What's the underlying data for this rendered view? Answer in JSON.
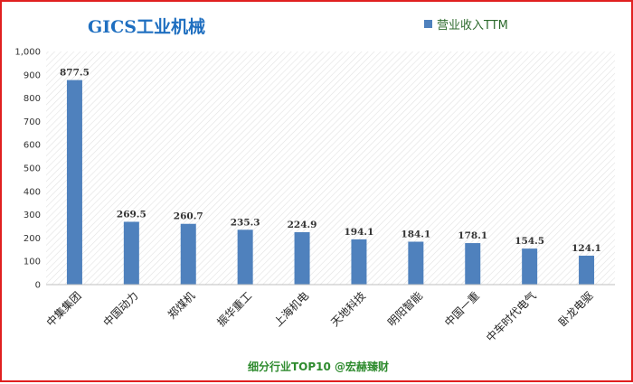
{
  "chart_data": {
    "type": "bar",
    "title": "GICS工业机械",
    "legend": {
      "label": "营业收入TTM",
      "position": "top-right"
    },
    "categories": [
      "中集集团",
      "中国动力",
      "郑煤机",
      "振华重工",
      "上海机电",
      "天地科技",
      "明阳智能",
      "中国一重",
      "中车时代电气",
      "卧龙电驱"
    ],
    "values": [
      877.5,
      269.5,
      260.7,
      235.3,
      224.9,
      194.1,
      184.1,
      178.1,
      154.5,
      124.1
    ],
    "value_labels": [
      "877.5",
      "269.5",
      "260.7",
      "235.3",
      "224.9",
      "194.1",
      "184.1",
      "178.1",
      "154.5",
      "124.1"
    ],
    "ylim": [
      0,
      1000
    ],
    "yticks": [
      "0",
      "100",
      "200",
      "300",
      "400",
      "500",
      "600",
      "700",
      "800",
      "900",
      "1,000"
    ],
    "grid": "diagonal-hatch-background",
    "bar_color": "#4f81bd",
    "footer": "细分行业TOP10 @宏赫臻财"
  }
}
